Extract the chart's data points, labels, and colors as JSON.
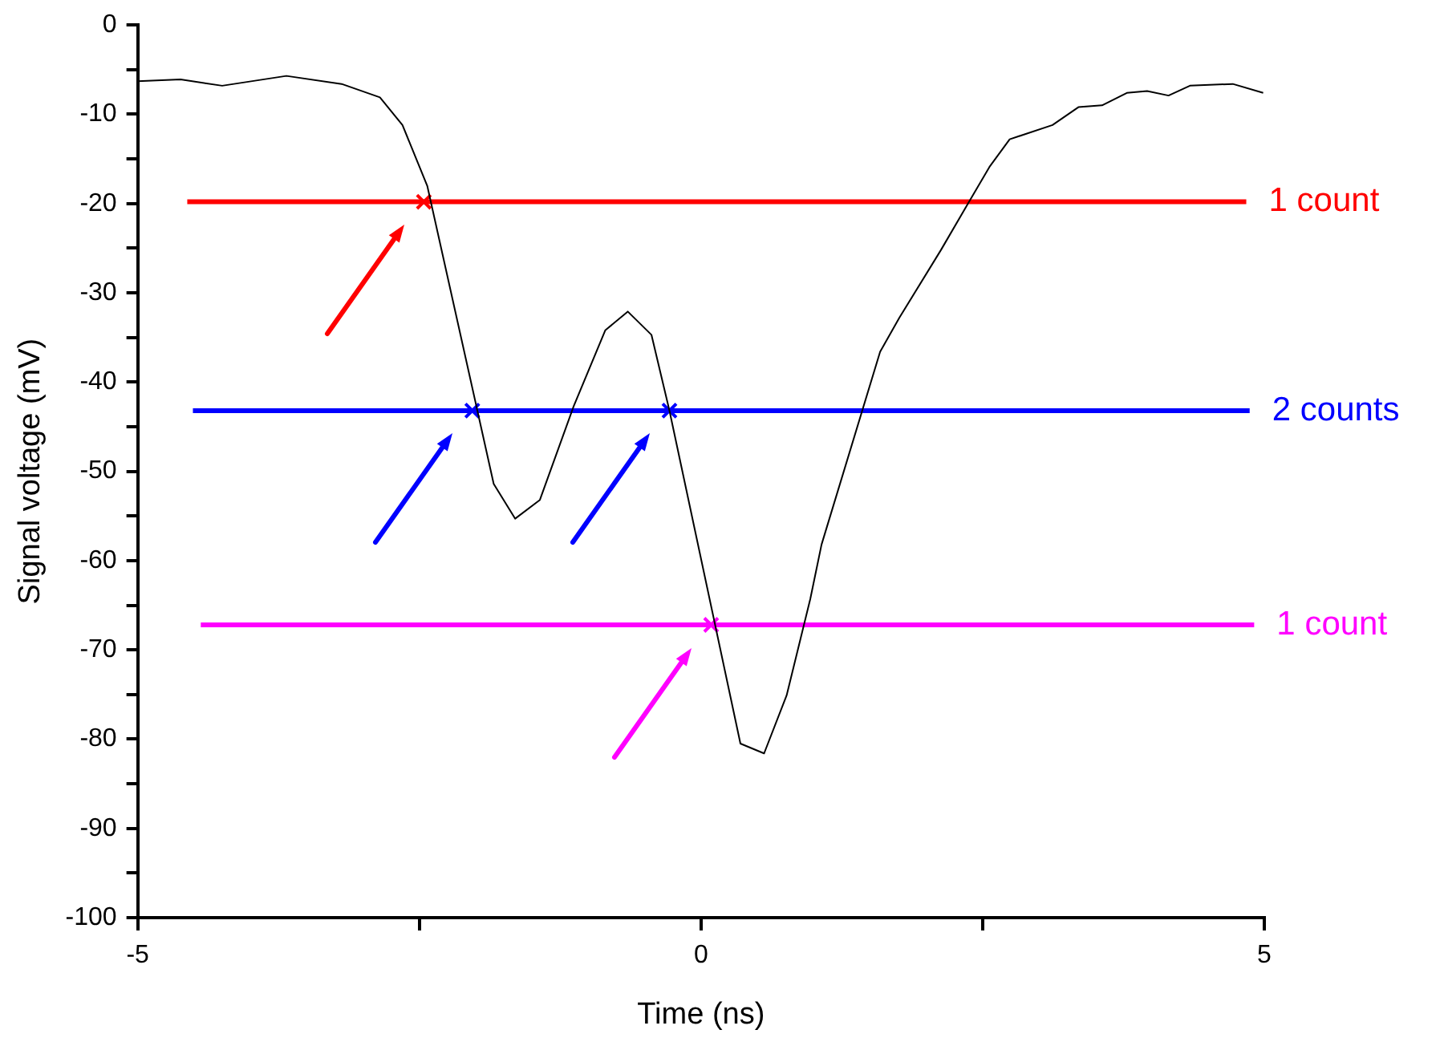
{
  "chart_data": {
    "type": "line",
    "xlabel": "Time (ns)",
    "ylabel": "Signal voltage (mV)",
    "xlim": [
      -5,
      5
    ],
    "xticks": [
      -5,
      {
        "value": -2.5,
        "label": null
      },
      0,
      {
        "value": 2.5,
        "label": null
      },
      5
    ],
    "ylim": [
      -100,
      0
    ],
    "yticks": [
      -100,
      {
        "value": -95,
        "label": null
      },
      -90,
      {
        "value": -85,
        "label": null
      },
      -80,
      {
        "value": -75,
        "label": null
      },
      -70,
      {
        "value": -65,
        "label": null
      },
      -60,
      {
        "value": -55,
        "label": null
      },
      -50,
      {
        "value": -45,
        "label": null
      },
      -40,
      {
        "value": -35,
        "label": null
      },
      -30,
      {
        "value": -25,
        "label": null
      },
      -20,
      {
        "value": -15,
        "label": null
      },
      -10,
      {
        "value": -5,
        "label": null
      },
      0
    ],
    "grid": false,
    "legend": false,
    "series": [
      {
        "color": "#000000",
        "x": [
          -5,
          -4.62,
          -4.25,
          -3.68,
          -3.19,
          -2.85,
          -2.65,
          -2.43,
          -1.84,
          -1.65,
          -1.43,
          -1.13,
          -0.85,
          -0.65,
          -0.44,
          -0.28,
          0.35,
          0.56,
          0.76,
          0.97,
          1.07,
          1.59,
          1.76,
          2.13,
          2.37,
          2.56,
          2.74,
          3.12,
          3.35,
          3.56,
          3.78,
          3.96,
          4.15,
          4.34,
          4.72,
          4.99
        ],
        "values": [
          -6.3,
          -6.1,
          -6.8,
          -5.7,
          -6.6,
          -8.1,
          -11.2,
          -18,
          -51.4,
          -55.3,
          -53.2,
          -42.7,
          -34.2,
          -32.1,
          -34.7,
          -43.2,
          -80.5,
          -81.6,
          -75.1,
          -64.3,
          -58.2,
          -36.6,
          -32.8,
          -25.2,
          -20,
          -15.9,
          -12.8,
          -11.2,
          -9.2,
          -9,
          -7.6,
          -7.4,
          -7.9,
          -6.8,
          -6.6,
          -7.6
        ]
      },
      {
        "name": "1 count",
        "color": "#ff0000",
        "x": [
          -4.56,
          4.84
        ],
        "values": [
          -19.8,
          -19.8
        ]
      },
      {
        "name": "2 counts",
        "color": "#0000ff",
        "x": [
          -4.51,
          4.87
        ],
        "values": [
          -43.2,
          -43.2
        ]
      },
      {
        "name": "1 count",
        "color": "#ff00ff",
        "x": [
          -4.44,
          4.91
        ],
        "values": [
          -67.2,
          -67.2
        ]
      },
      {
        "type": "scatter",
        "marker": "cross",
        "color": "#ff0000",
        "x": [
          -2.46
        ],
        "values": [
          -19.8
        ]
      },
      {
        "type": "scatter",
        "marker": "cross",
        "color": "#0000ff",
        "x": [
          -2.03,
          -0.28
        ],
        "values": [
          -43.2,
          -43.2
        ]
      },
      {
        "type": "scatter",
        "marker": "cross",
        "color": "#ff00ff",
        "x": [
          0.09
        ],
        "values": [
          -67.2
        ]
      }
    ]
  }
}
